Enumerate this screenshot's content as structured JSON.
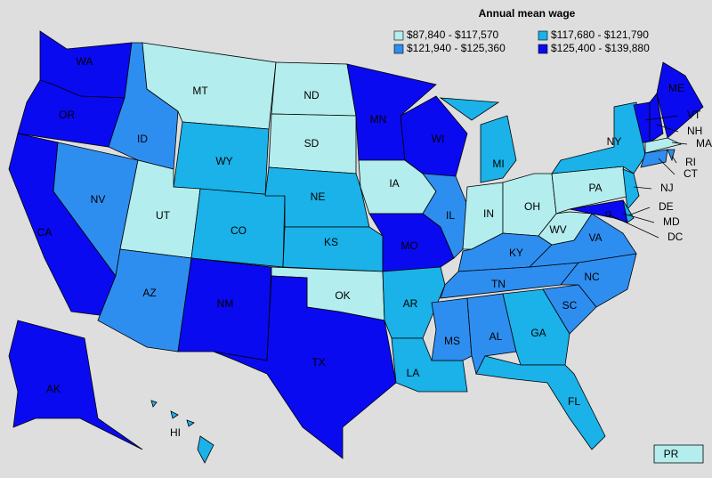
{
  "legend": {
    "title": "Annual mean wage",
    "items": [
      {
        "label": "$87,840 - $117,570",
        "color": "#b3eded"
      },
      {
        "label": "$117,680 - $121,790",
        "color": "#1ab2e8"
      },
      {
        "label": "$121,940 - $125,360",
        "color": "#2e8ef0"
      },
      {
        "label": "$125,400 - $139,880",
        "color": "#0a0af0"
      }
    ]
  },
  "states": [
    {
      "label": "WA",
      "bin": 3
    },
    {
      "label": "OR",
      "bin": 3
    },
    {
      "label": "CA",
      "bin": 3
    },
    {
      "label": "NV",
      "bin": 2
    },
    {
      "label": "ID",
      "bin": 2
    },
    {
      "label": "MT",
      "bin": 0
    },
    {
      "label": "WY",
      "bin": 1
    },
    {
      "label": "UT",
      "bin": 0
    },
    {
      "label": "CO",
      "bin": 1
    },
    {
      "label": "AZ",
      "bin": 2
    },
    {
      "label": "NM",
      "bin": 3
    },
    {
      "label": "ND",
      "bin": 0
    },
    {
      "label": "SD",
      "bin": 0
    },
    {
      "label": "NE",
      "bin": 1
    },
    {
      "label": "KS",
      "bin": 1
    },
    {
      "label": "OK",
      "bin": 0
    },
    {
      "label": "TX",
      "bin": 3
    },
    {
      "label": "MN",
      "bin": 3
    },
    {
      "label": "IA",
      "bin": 0
    },
    {
      "label": "MO",
      "bin": 3
    },
    {
      "label": "AR",
      "bin": 1
    },
    {
      "label": "LA",
      "bin": 1
    },
    {
      "label": "WI",
      "bin": 3
    },
    {
      "label": "IL",
      "bin": 2
    },
    {
      "label": "MI",
      "bin": 1
    },
    {
      "label": "IN",
      "bin": 0
    },
    {
      "label": "OH",
      "bin": 0
    },
    {
      "label": "KY",
      "bin": 2
    },
    {
      "label": "TN",
      "bin": 2
    },
    {
      "label": "MS",
      "bin": 2
    },
    {
      "label": "AL",
      "bin": 2
    },
    {
      "label": "GA",
      "bin": 1
    },
    {
      "label": "FL",
      "bin": 1
    },
    {
      "label": "SC",
      "bin": 2
    },
    {
      "label": "NC",
      "bin": 2
    },
    {
      "label": "VA",
      "bin": 2
    },
    {
      "label": "WV",
      "bin": 0
    },
    {
      "label": "PA",
      "bin": 0
    },
    {
      "label": "NY",
      "bin": 1
    },
    {
      "label": "NJ",
      "bin": 1
    },
    {
      "label": "DE",
      "bin": 1
    },
    {
      "label": "MD",
      "bin": 3
    },
    {
      "label": "VT",
      "bin": 3
    },
    {
      "label": "NH",
      "bin": 3
    },
    {
      "label": "ME",
      "bin": 3
    },
    {
      "label": "MA",
      "bin": 0
    },
    {
      "label": "RI",
      "bin": 2
    },
    {
      "label": "CT",
      "bin": 2
    },
    {
      "label": "AK",
      "bin": 3
    },
    {
      "label": "HI",
      "bin": 1
    },
    {
      "label": "PR",
      "bin": 0
    },
    {
      "label": "DC",
      "bin": 3
    }
  ]
}
